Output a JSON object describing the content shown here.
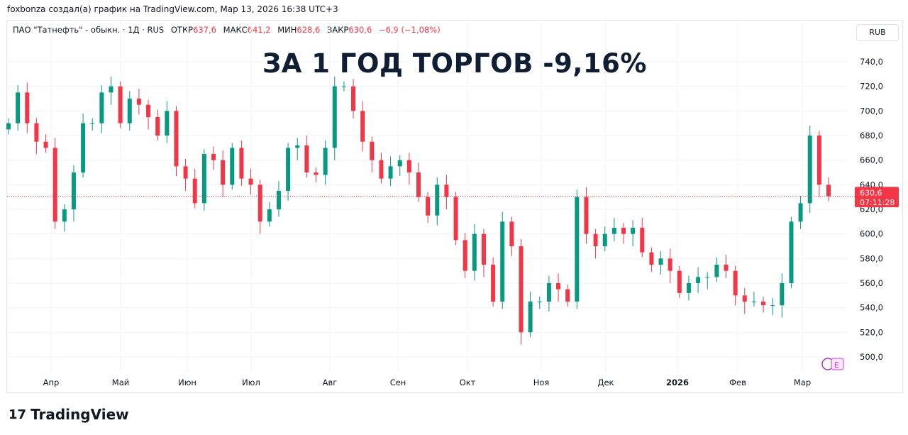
{
  "credit": "foxbonza создал(а) график на TradingView.com, Мар 13, 2026 16:38 UTC+3",
  "legend": {
    "symbol": "ПАО \"Татнефть\" - обыкн. · 1Д · RUS",
    "open_label": "ОТКР",
    "open": "637,6",
    "high_label": "МАКС",
    "high": "641,2",
    "low_label": "МИН",
    "low": "628,6",
    "close_label": "ЗАКР",
    "close": "630,6",
    "change": "−6,9 (−1,08%)"
  },
  "currency": "RUB",
  "overlay_title": "ЗА 1 ГОД ТОРГОВ -9,16%",
  "last_price": {
    "value": 630.6,
    "label": "630,6",
    "countdown": "07:11:28"
  },
  "logo_text": "TradingView",
  "colors": {
    "up": "#089981",
    "down": "#f23645"
  },
  "chart_data": {
    "type": "candlestick",
    "title": "ПАО \"Татнефть\" - обыкн. · 1Д",
    "ylim": [
      490,
      750
    ],
    "yticks": [
      500,
      520,
      540,
      560,
      580,
      600,
      620,
      640,
      660,
      680,
      700,
      720,
      740
    ],
    "ytick_labels": [
      "500,0",
      "520,0",
      "540,0",
      "560,0",
      "580,0",
      "600,0",
      "620,0",
      "640,0",
      "660,0",
      "680,0",
      "700,0",
      "720,0",
      "740,0"
    ],
    "xtick_labels": [
      "Апр",
      "Май",
      "Июн",
      "Июл",
      "Авг",
      "Сен",
      "Окт",
      "Ноя",
      "Дек",
      "2026",
      "Фев",
      "Мар"
    ],
    "closes": [
      690,
      715,
      690,
      675,
      670,
      610,
      620,
      650,
      690,
      690,
      715,
      720,
      690,
      710,
      705,
      695,
      680,
      700,
      655,
      645,
      625,
      665,
      660,
      640,
      670,
      645,
      640,
      610,
      620,
      635,
      670,
      672,
      650,
      648,
      670,
      720,
      720,
      700,
      675,
      660,
      645,
      655,
      660,
      650,
      630,
      615,
      640,
      630,
      595,
      570,
      600,
      575,
      545,
      610,
      590,
      520,
      545,
      545,
      560,
      555,
      545,
      630,
      600,
      590,
      600,
      605,
      600,
      605,
      585,
      575,
      580,
      570,
      552,
      560,
      565,
      565,
      575,
      570,
      550,
      545,
      545,
      542,
      542,
      560,
      610,
      625,
      680,
      640,
      630.6
    ]
  }
}
